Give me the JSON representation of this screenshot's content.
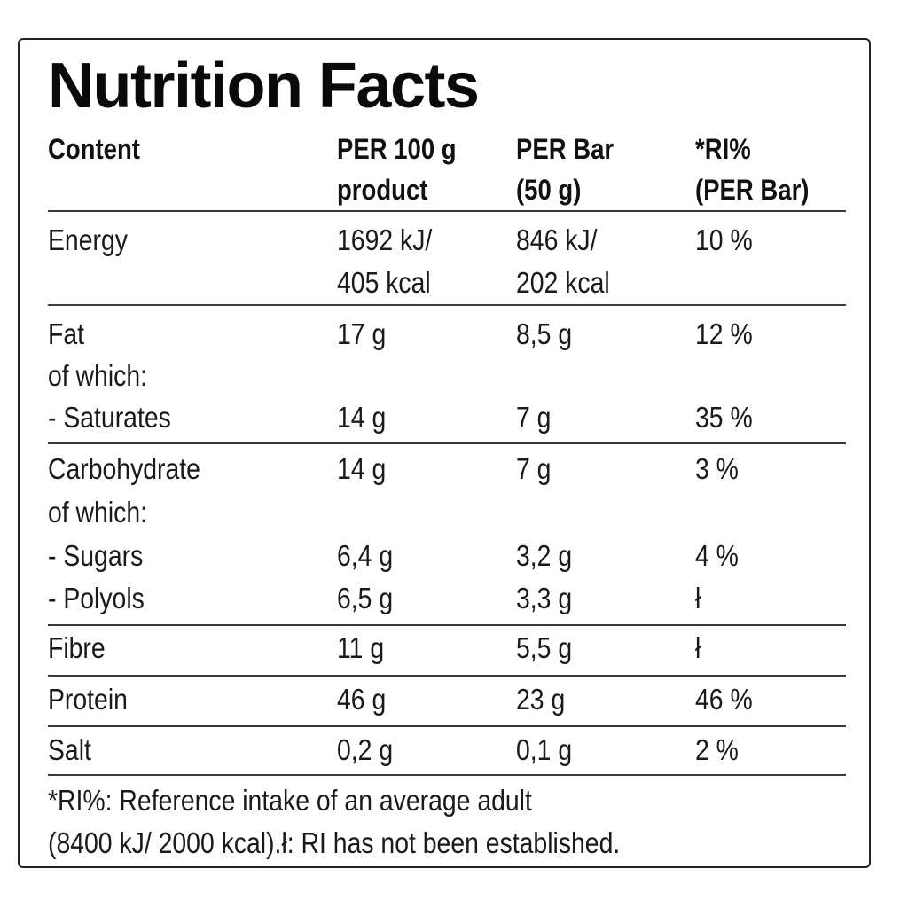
{
  "title": "Nutrition Facts",
  "headers": {
    "content": "Content",
    "per100": [
      "PER 100 g",
      "product"
    ],
    "perBar": [
      "PER Bar",
      "(50 g)"
    ],
    "ri": [
      "*RI%",
      "(PER Bar)"
    ]
  },
  "rows": {
    "energy": {
      "label": "Energy",
      "per100": [
        "1692 kJ/",
        "405 kcal"
      ],
      "perBar": [
        "846 kJ/",
        "202 kcal"
      ],
      "ri": "10 %"
    },
    "fat": {
      "label": "Fat",
      "per100": "17 g",
      "perBar": "8,5 g",
      "ri": "12 %"
    },
    "fat_ofwhich": "of which:",
    "saturates": {
      "label": "- Saturates",
      "per100": "14 g",
      "perBar": "7 g",
      "ri": "35 %"
    },
    "carbohydrate": {
      "label": "Carbohydrate",
      "per100": "14 g",
      "perBar": "7 g",
      "ri": "3 %"
    },
    "carb_ofwhich": "of which:",
    "sugars": {
      "label": "- Sugars",
      "per100": "6,4 g",
      "perBar": "3,2 g",
      "ri": "4 %"
    },
    "polyols": {
      "label": "- Polyols",
      "per100": "6,5 g",
      "perBar": "3,3 g",
      "ri": "ł"
    },
    "fibre": {
      "label": "Fibre",
      "per100": "11 g",
      "perBar": "5,5 g",
      "ri": "ł"
    },
    "protein": {
      "label": "Protein",
      "per100": "46 g",
      "perBar": "23 g",
      "ri": "46 %"
    },
    "salt": {
      "label": "Salt",
      "per100": "0,2 g",
      "perBar": "0,1 g",
      "ri": "2 %"
    }
  },
  "footnote": [
    "*RI%: Reference intake of an average adult",
    "(8400 kJ/ 2000 kcal).ł: RI has not been established."
  ]
}
